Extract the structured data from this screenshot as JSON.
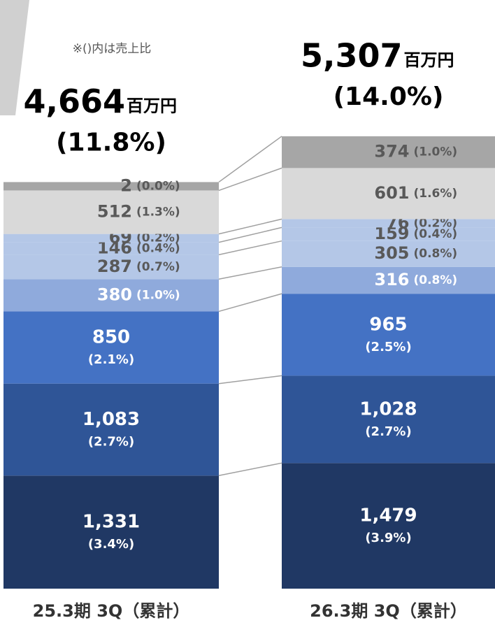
{
  "chart_data": {
    "type": "stacked-bar",
    "note": "※()内は売上比",
    "categories": [
      "25.3期 3Q（累計）",
      "26.3期 3Q（累計）"
    ],
    "totals": [
      4664,
      5307
    ],
    "total_labels": [
      "4,664",
      "5,307"
    ],
    "total_unit": "百万円",
    "total_ratio_labels": [
      "(11.8%)",
      "(14.0%)"
    ],
    "series": [
      {
        "color": "#203864",
        "values": [
          1331,
          1479
        ],
        "value_labels": [
          "1,331",
          "1,479"
        ],
        "ratio_labels": [
          "(3.4%)",
          "(3.9%)"
        ]
      },
      {
        "color": "#2f5597",
        "values": [
          1083,
          1028
        ],
        "value_labels": [
          "1,083",
          "1,028"
        ],
        "ratio_labels": [
          "(2.7%)",
          "(2.7%)"
        ]
      },
      {
        "color": "#4472c4",
        "values": [
          850,
          965
        ],
        "ratio_labels": [
          "(2.1%)",
          "(2.5%)"
        ]
      },
      {
        "color": "#8faadc",
        "values": [
          380,
          316
        ],
        "ratio_labels": [
          "(1.0%)",
          "(0.8%)"
        ]
      },
      {
        "color": "#b4c7e7",
        "values": [
          287,
          305
        ],
        "ratio_labels": [
          "(0.7%)",
          "(0.8%)"
        ]
      },
      {
        "color": "#b4c7e7",
        "values": [
          146,
          159
        ],
        "ratio_labels": [
          "(0.4%)",
          "(0.4%)"
        ]
      },
      {
        "color": "#b4c7e7",
        "values": [
          69,
          76
        ],
        "ratio_labels": [
          "(0.2%)",
          "(0.2%)"
        ]
      },
      {
        "color": "#d9d9d9",
        "values": [
          512,
          601
        ],
        "ratio_labels": [
          "(1.3%)",
          "(1.6%)"
        ]
      },
      {
        "color": "#a6a6a6",
        "values": [
          2,
          374
        ],
        "ratio_labels": [
          "(0.0%)",
          "(1.0%)"
        ]
      }
    ]
  }
}
